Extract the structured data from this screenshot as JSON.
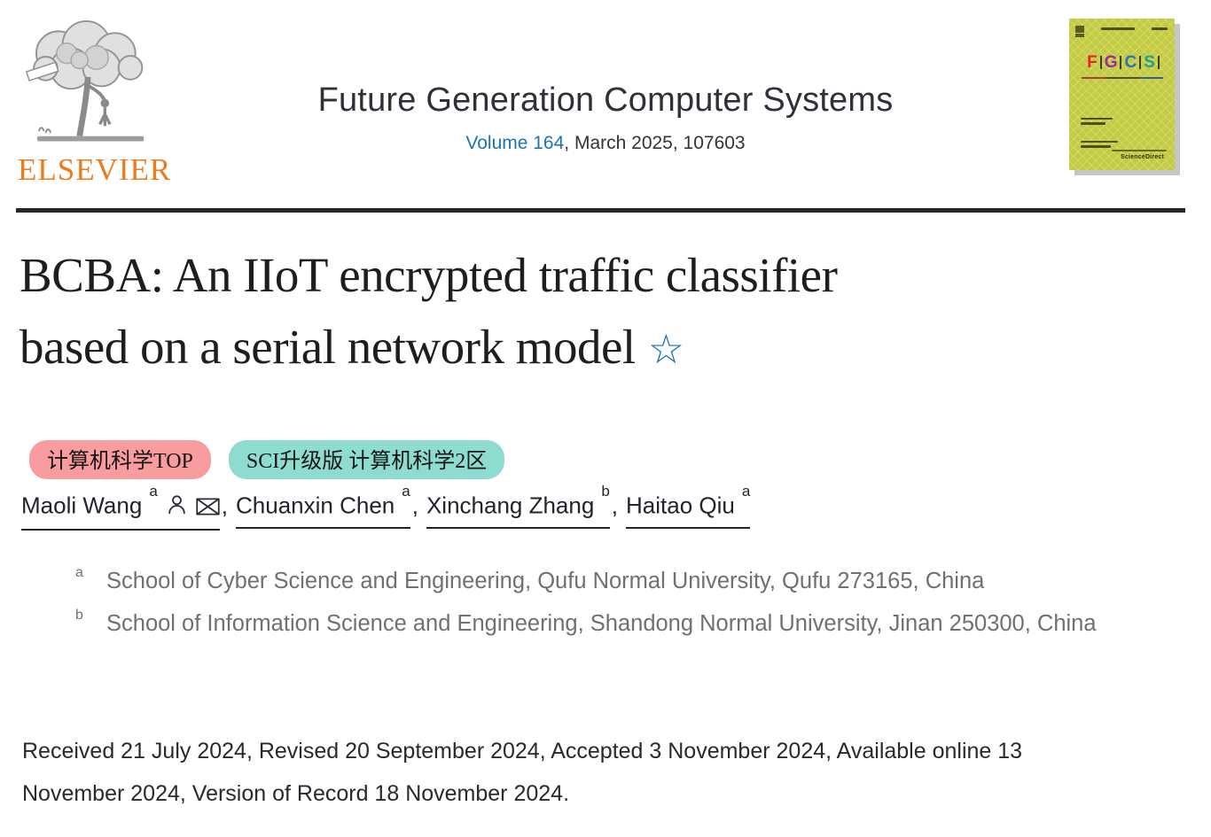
{
  "header": {
    "publisher_wordmark": "ELSEVIER",
    "journal_title": "Future Generation Computer Systems",
    "volume_link": "Volume 164",
    "issue_info": ", March 2025, 107603",
    "cover": {
      "letters": [
        "F",
        "G",
        "C",
        "S"
      ],
      "letter_colors": [
        "#e5242c",
        "#a327a0",
        "#2d72b8",
        "#21a18e"
      ],
      "background": "#c3cb41",
      "brand": "ScienceDirect"
    }
  },
  "article": {
    "title_lines": [
      "BCBA: An IIoT encrypted traffic classifier",
      "based on a serial network model"
    ],
    "star_glyph": "☆",
    "badges": [
      {
        "label": "计算机科学TOP",
        "bg": "#f99ca0"
      },
      {
        "label": "SCI升级版 计算机科学2区",
        "bg": "#8edcd0"
      }
    ],
    "authors": [
      {
        "name": "Maoli Wang",
        "sup": "a",
        "icons": [
          "person",
          "envelope"
        ]
      },
      {
        "name": "Chuanxin Chen",
        "sup": "a",
        "icons": []
      },
      {
        "name": "Xinchang Zhang",
        "sup": "b",
        "icons": []
      },
      {
        "name": "Haitao Qiu",
        "sup": "a",
        "icons": []
      }
    ],
    "author_separator": ", ",
    "affiliations": [
      {
        "sup": "a",
        "text": "School of Cyber Science and Engineering, Qufu Normal University, Qufu 273165, China"
      },
      {
        "sup": "b",
        "text": "School of Information Science and Engineering, Shandong Normal University, Jinan 250300, China"
      }
    ],
    "dates": "Received 21 July 2024, Revised 20 September 2024, Accepted 3 November 2024, Available online 13 November 2024, Version of Record 18 November 2024."
  },
  "colors": {
    "elsevier_orange": "#ee7a1e",
    "link_blue": "#1c74b8",
    "star_blue": "#1b6fb5",
    "divider": "#27272c",
    "affiliation_gray": "#707070"
  }
}
